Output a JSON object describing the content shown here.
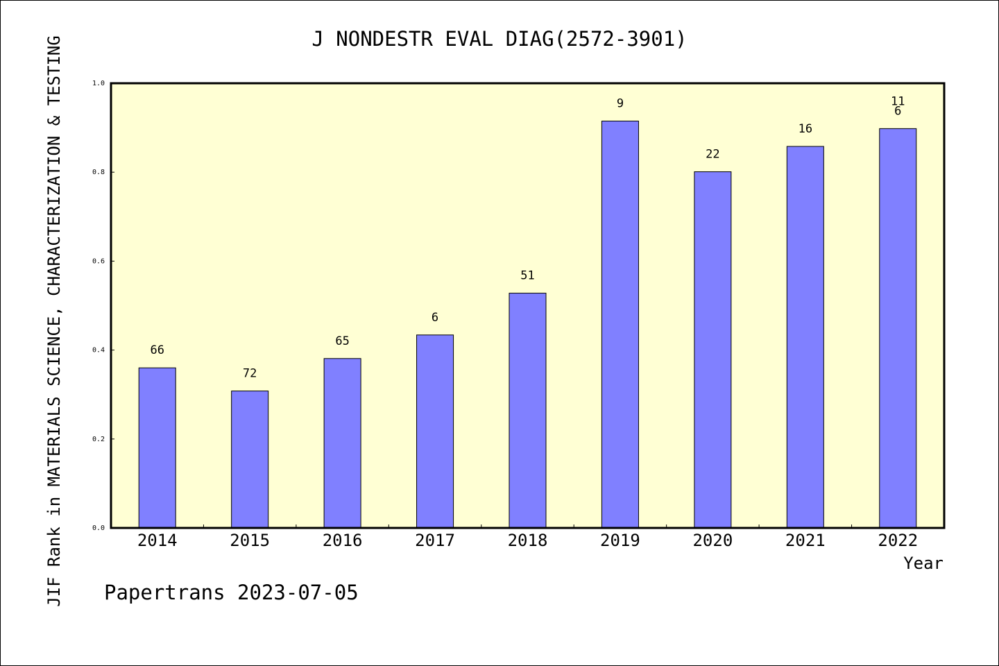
{
  "chart_data": {
    "type": "bar",
    "title": "J NONDESTR EVAL DIAG(2572-3901)",
    "xlabel": "Year",
    "ylabel": "JIF Rank in MATERIALS SCIENCE, CHARACTERIZATION & TESTING",
    "ylim": [
      0,
      1.0
    ],
    "yticks": [
      "0.0",
      "0.2",
      "0.4",
      "0.6",
      "0.8",
      "1.0"
    ],
    "grid": false,
    "categories": [
      "2014",
      "2015",
      "2016",
      "2017",
      "2018",
      "2019",
      "2020",
      "2021",
      "2022"
    ],
    "values": [
      0.36,
      0.308,
      0.381,
      0.434,
      0.528,
      0.915,
      0.801,
      0.858,
      0.898
    ],
    "labels": [
      "66",
      "72",
      "65",
      "6",
      "51",
      "9",
      "22",
      "16",
      "11\n6"
    ],
    "bar_color": "#8080ff",
    "plot_background": "#ffffd4"
  },
  "footer": {
    "credit": "Papertrans 2023-07-05"
  }
}
